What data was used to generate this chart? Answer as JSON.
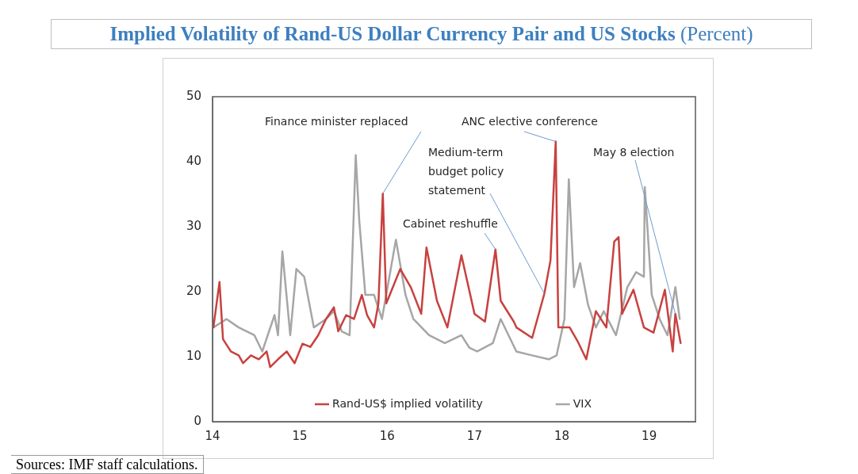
{
  "chart_data": {
    "type": "line",
    "title": "Implied Volatility of Rand-US Dollar Currency Pair and US Stocks (Percent)",
    "xlim": [
      14,
      19.53
    ],
    "xticks": [
      14,
      15,
      16,
      17,
      18,
      19
    ],
    "ylim": [
      0,
      50
    ],
    "yticks": [
      0,
      10,
      20,
      30,
      40,
      50
    ],
    "grid": false,
    "legend": "bottom",
    "marker": "none",
    "line_style": "solid",
    "series": [
      {
        "name": "Rand-US$ implied volatility",
        "color": "#c8413f",
        "x": [
          14.01,
          14.08,
          14.12,
          14.21,
          14.3,
          14.35,
          14.44,
          14.53,
          14.62,
          14.66,
          14.75,
          14.85,
          14.94,
          15.03,
          15.12,
          15.21,
          15.3,
          15.39,
          15.44,
          15.53,
          15.62,
          15.71,
          15.77,
          15.85,
          15.9,
          15.95,
          15.99,
          16.15,
          16.27,
          16.39,
          16.45,
          16.57,
          16.69,
          16.85,
          17.0,
          17.12,
          17.24,
          17.3,
          17.45,
          17.48,
          17.66,
          17.8,
          17.87,
          17.93,
          17.96,
          18.09,
          18.18,
          18.28,
          18.39,
          18.51,
          18.6,
          18.65,
          18.69,
          18.82,
          18.94,
          19.05,
          19.18,
          19.27,
          19.3,
          19.36
        ],
        "values": [
          14.5,
          21.5,
          12.7,
          10.8,
          10.2,
          9.0,
          10.2,
          9.6,
          10.8,
          8.4,
          9.6,
          10.8,
          9.0,
          12.0,
          11.5,
          13.3,
          15.8,
          17.6,
          13.9,
          16.4,
          15.8,
          19.5,
          16.4,
          14.5,
          18.2,
          35.1,
          18.2,
          23.5,
          20.7,
          16.6,
          26.8,
          18.6,
          14.5,
          25.6,
          16.6,
          15.4,
          26.5,
          18.6,
          15.4,
          14.5,
          12.9,
          19.7,
          24.8,
          43.1,
          14.5,
          14.5,
          12.4,
          9.6,
          17.0,
          14.5,
          27.7,
          28.4,
          16.6,
          20.3,
          14.5,
          13.7,
          20.3,
          10.8,
          16.6,
          12.1
        ]
      },
      {
        "name": "VIX",
        "color": "#a6a6a6",
        "x": [
          14.01,
          14.16,
          14.3,
          14.48,
          14.57,
          14.71,
          14.75,
          14.8,
          14.89,
          14.96,
          15.05,
          15.16,
          15.3,
          15.39,
          15.48,
          15.57,
          15.64,
          15.68,
          15.75,
          15.85,
          15.94,
          16.1,
          16.21,
          16.3,
          16.48,
          16.66,
          16.85,
          16.94,
          17.03,
          17.21,
          17.3,
          17.48,
          17.66,
          17.85,
          17.94,
          18.03,
          18.08,
          18.14,
          18.21,
          18.3,
          18.39,
          18.48,
          18.62,
          18.75,
          18.85,
          18.94,
          18.95,
          19.03,
          19.12,
          19.21,
          19.3,
          19.35
        ],
        "values": [
          14.5,
          15.8,
          14.5,
          13.3,
          10.8,
          16.4,
          13.3,
          26.2,
          13.3,
          23.5,
          22.3,
          14.5,
          15.8,
          17.0,
          13.9,
          13.3,
          41.0,
          31.0,
          19.5,
          19.5,
          15.8,
          28.0,
          19.5,
          15.8,
          13.3,
          12.1,
          13.3,
          11.4,
          10.8,
          12.1,
          15.8,
          10.8,
          10.2,
          9.6,
          10.2,
          15.8,
          37.3,
          20.7,
          24.4,
          18.0,
          14.5,
          17.0,
          13.3,
          20.7,
          23.0,
          22.3,
          36.1,
          19.5,
          15.8,
          13.3,
          20.7,
          15.8
        ]
      }
    ],
    "annotations": [
      {
        "text": "Finance minister replaced",
        "x": 15.95,
        "y": 35.1
      },
      {
        "text": "ANC elective conference",
        "x": 17.93,
        "y": 43.1
      },
      {
        "text": "Medium-term budget policy statement",
        "x": 17.8,
        "y": 19.7
      },
      {
        "text": "Cabinet reshuffle",
        "x": 17.24,
        "y": 26.5
      },
      {
        "text": "May 8 election",
        "x": 19.3,
        "y": 16.6
      },
      "Sources: IMF staff calculations."
    ]
  }
}
